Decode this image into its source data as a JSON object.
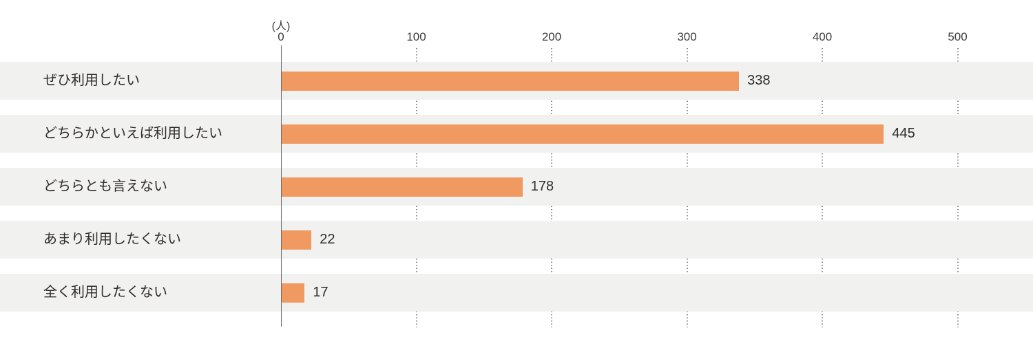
{
  "chart_data": {
    "type": "bar",
    "orientation": "horizontal",
    "title": "",
    "unit_label": "(人)",
    "categories": [
      "ぜひ利用したい",
      "どちらかといえば利用したい",
      "どちらとも言えない",
      "あまり利用したくない",
      "全く利用したくない"
    ],
    "values": [
      338,
      445,
      178,
      22,
      17
    ],
    "x_ticks": [
      0,
      100,
      200,
      300,
      400,
      500
    ],
    "xlim": [
      0,
      500
    ],
    "value_labels": [
      "338",
      "445",
      "178",
      "22",
      "17"
    ],
    "tick_labels": [
      "0",
      "100",
      "200",
      "300",
      "400",
      "500"
    ],
    "grid": "dotted-vertical-tick-guides-between-rows",
    "legend": "none",
    "colors": {
      "bar": "#F09A61",
      "row_background": "#F1F1F0",
      "axis_line": "#6A6A6A",
      "dotted_guide": "#8A8A8A",
      "text": "#2F2B28",
      "tick_text": "#3C3C3C"
    }
  }
}
